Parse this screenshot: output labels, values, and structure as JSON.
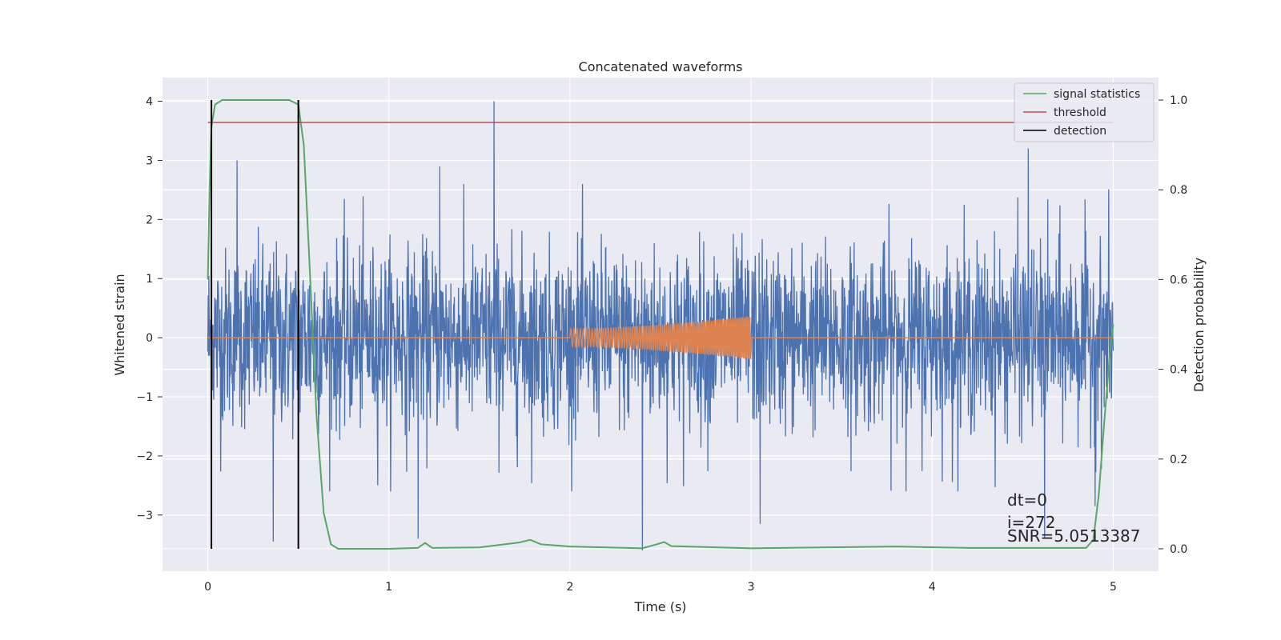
{
  "chart_data": {
    "type": "line",
    "title": "Concatenated waveforms",
    "xlabel": "Time (s)",
    "ylabel": "Whitened strain",
    "y2label": "Detection probability",
    "xlim": [
      -0.25,
      5.25
    ],
    "ylim": [
      -3.95,
      4.4
    ],
    "y2lim": [
      -0.05,
      1.05
    ],
    "xticks": [
      0,
      1,
      2,
      3,
      4,
      5
    ],
    "yticks": [
      -3,
      -2,
      -1,
      0,
      1,
      2,
      3,
      4
    ],
    "y2ticks": [
      0.0,
      0.2,
      0.4,
      0.6,
      0.8,
      1.0
    ],
    "grid": true,
    "legend_position": "top-right",
    "colors": {
      "strain": "#4c72b0",
      "template": "#dd8452",
      "signal_statistics": "#55a868",
      "threshold": "#c44e52",
      "detection": "#000000",
      "plot_background": "#eaeaf2",
      "grid": "#ffffff"
    },
    "legend": [
      {
        "label": "signal statistics",
        "color": "#55a868"
      },
      {
        "label": "threshold",
        "color": "#c44e52"
      },
      {
        "label": "detection",
        "color": "#000000"
      }
    ],
    "strain": {
      "x_range": [
        0,
        5
      ],
      "typical_range": [
        -2.0,
        2.0
      ],
      "peaks": [
        {
          "x": 1.58,
          "y": 4.0
        },
        {
          "x": 0.16,
          "y": 3.0
        },
        {
          "x": 4.53,
          "y": 3.2
        },
        {
          "x": 1.28,
          "y": 2.9
        },
        {
          "x": 0.36,
          "y": -3.45
        },
        {
          "x": 1.16,
          "y": -3.4
        },
        {
          "x": 2.4,
          "y": -3.6
        },
        {
          "x": 3.05,
          "y": -3.15
        },
        {
          "x": 4.62,
          "y": -3.4
        },
        {
          "x": 4.9,
          "y": -2.85
        }
      ]
    },
    "template": {
      "x_start": 2.0,
      "x_end": 3.0,
      "amplitude_start": 0.15,
      "amplitude_end": 0.37
    },
    "signal_statistics": {
      "x": [
        0,
        0.01,
        0.02,
        0.04,
        0.08,
        0.45,
        0.5,
        0.53,
        0.56,
        0.6,
        0.64,
        0.68,
        0.72,
        1.0,
        1.16,
        1.2,
        1.24,
        1.5,
        1.72,
        1.78,
        1.84,
        2.0,
        2.4,
        2.48,
        2.52,
        2.56,
        3.0,
        3.8,
        4.2,
        4.85,
        4.89,
        4.92,
        4.95,
        4.98,
        5.0
      ],
      "y": [
        0.6,
        0.8,
        0.94,
        0.99,
        1.0,
        1.0,
        0.99,
        0.9,
        0.65,
        0.3,
        0.08,
        0.01,
        0.0,
        0.0,
        0.002,
        0.013,
        0.002,
        0.003,
        0.014,
        0.02,
        0.01,
        0.005,
        0.001,
        0.01,
        0.015,
        0.006,
        0.001,
        0.005,
        0.002,
        0.002,
        0.02,
        0.12,
        0.28,
        0.43,
        0.5
      ]
    },
    "threshold": {
      "value": 0.95,
      "x_range": [
        0,
        5
      ]
    },
    "detections": [
      0.02,
      0.5
    ],
    "annotations": [
      "dt=0",
      "i=272",
      "SNR=5.0513387"
    ]
  }
}
